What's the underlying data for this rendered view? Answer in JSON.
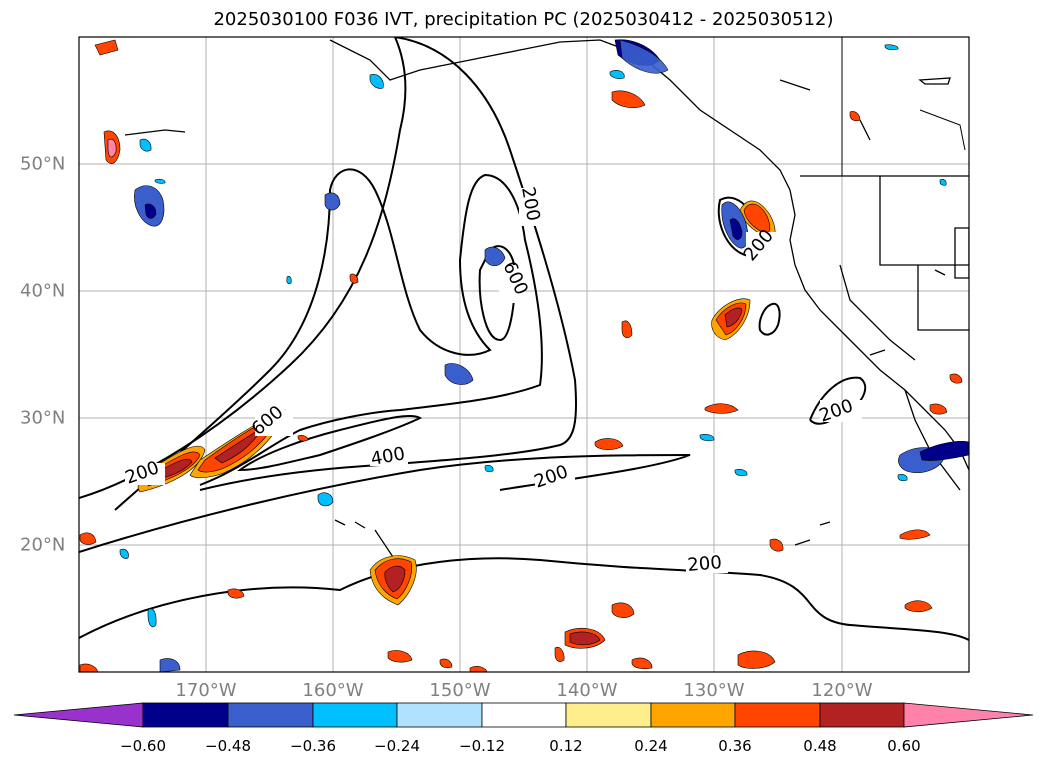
{
  "title": "2025030100 F036 IVT, precipitation PC (2025030412 - 2025030512)",
  "map": {
    "extent": {
      "lon_min": -180,
      "lon_max": -110,
      "lat_min": 10,
      "lat_max": 60
    },
    "lon_labels": [
      "170°W",
      "160°W",
      "150°W",
      "140°W",
      "130°W",
      "120°W"
    ],
    "lat_labels": [
      "50°N",
      "40°N",
      "30°N",
      "20°N"
    ],
    "contour_labels": [
      "200",
      "600",
      "200",
      "600",
      "200",
      "400",
      "200",
      "200",
      "200"
    ]
  },
  "colorbar": {
    "colors": [
      "#9932cc",
      "#00008b",
      "#3a5fcd",
      "#00bfff",
      "#b0e2ff",
      "#ffffff",
      "#ffec8b",
      "#ffa500",
      "#ff4500",
      "#b22222",
      "#ff82ab"
    ],
    "ticks": [
      "−0.60",
      "−0.48",
      "−0.36",
      "−0.24",
      "−0.12",
      "0.12",
      "0.24",
      "0.36",
      "0.48",
      "0.60"
    ]
  }
}
